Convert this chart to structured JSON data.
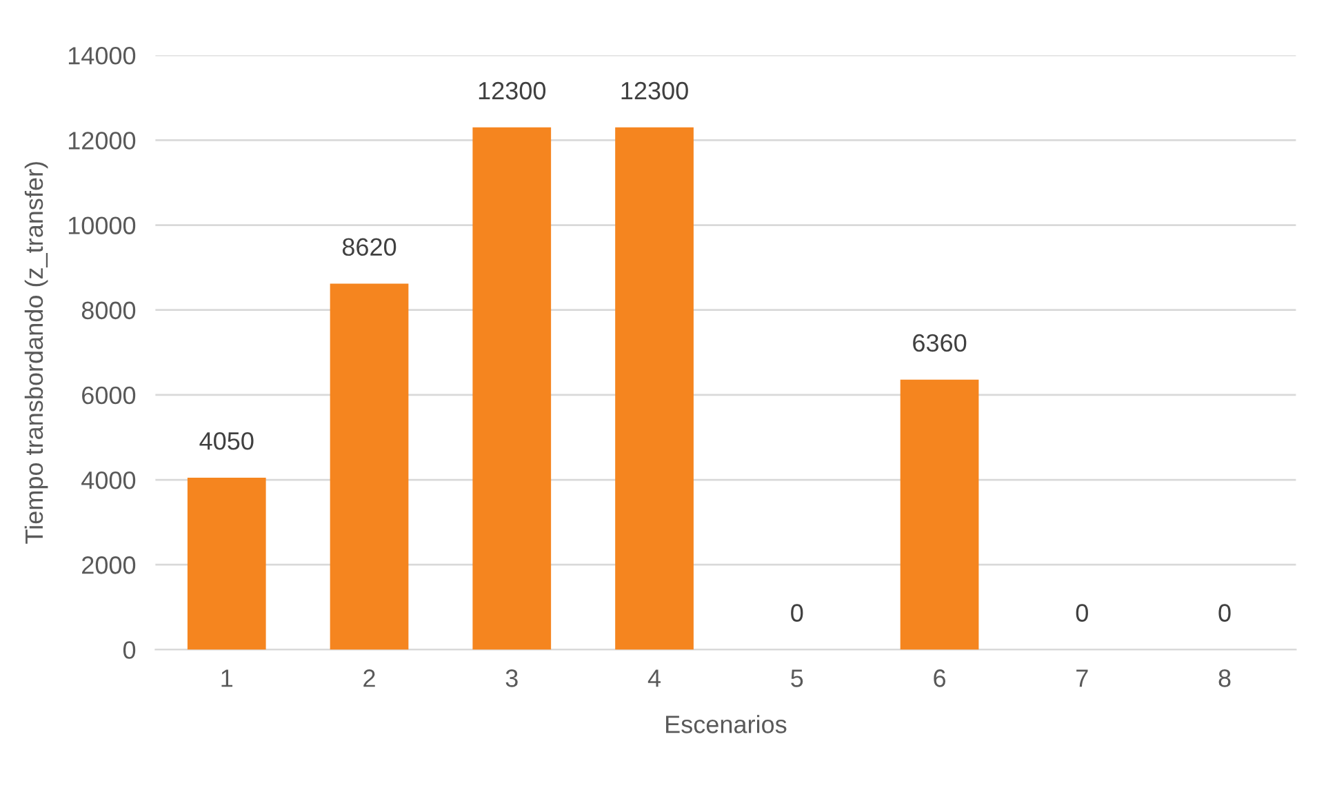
{
  "chart_data": {
    "type": "bar",
    "xlabel": "Escenarios",
    "ylabel": "Tiempo transbordando (z_transfer)",
    "categories": [
      "1",
      "2",
      "3",
      "4",
      "5",
      "6",
      "7",
      "8"
    ],
    "values": [
      4050,
      8620,
      12300,
      12300,
      0,
      6360,
      0,
      0
    ],
    "color": "#f5851f",
    "ylim": [
      0,
      14000
    ],
    "yticks": [
      0,
      2000,
      4000,
      6000,
      8000,
      10000,
      12000,
      14000
    ],
    "grid": "y",
    "data_labels": true,
    "legend": false
  }
}
